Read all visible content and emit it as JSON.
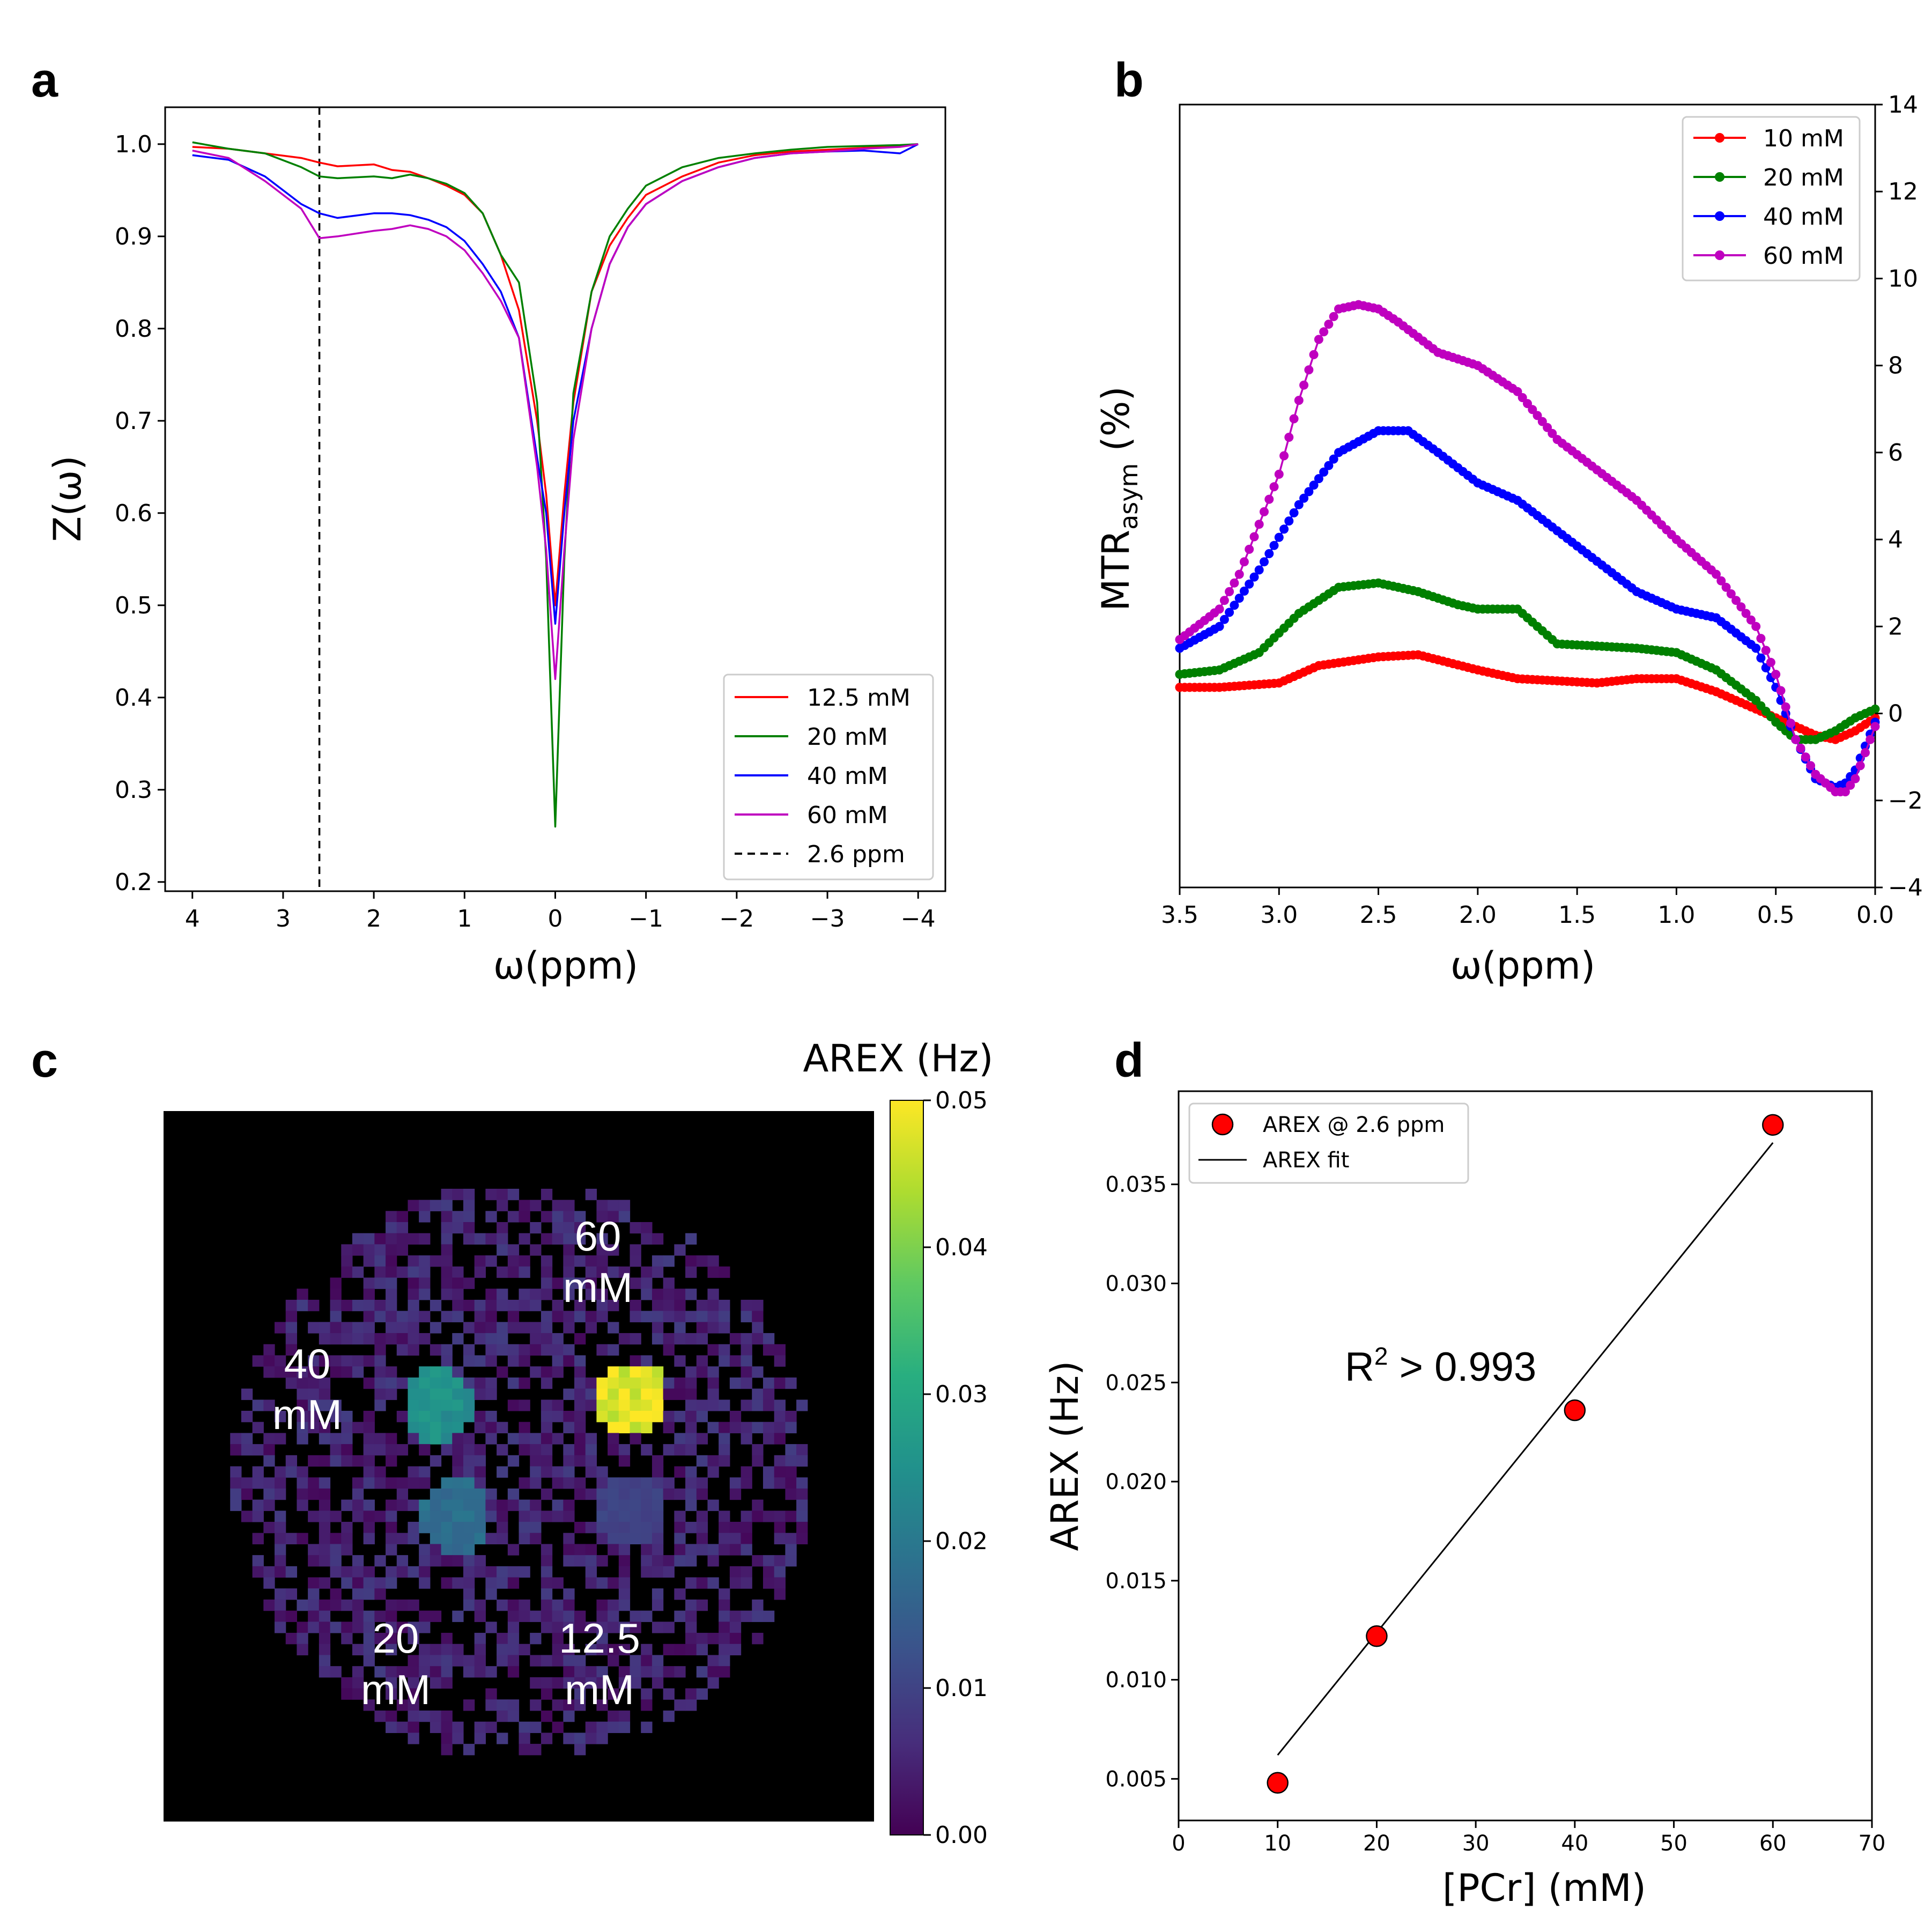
{
  "panels": {
    "a": "a",
    "b": "b",
    "c": "c",
    "d": "d"
  },
  "chart_data": [
    {
      "id": "a",
      "type": "line",
      "title": "",
      "xlabel": "ω(ppm)",
      "ylabel": "Z(ω)",
      "xlim": [
        4.3,
        -4.3
      ],
      "ylim": [
        0.19,
        1.04
      ],
      "xticks": [
        4,
        3,
        2,
        1,
        0,
        -1,
        -2,
        -3,
        -4
      ],
      "xtick_labels": [
        "4",
        "3",
        "2",
        "1",
        "0",
        "−1",
        "−2",
        "−3",
        "−4"
      ],
      "yticks": [
        0.2,
        0.3,
        0.4,
        0.5,
        0.6,
        0.7,
        0.8,
        0.9,
        1.0
      ],
      "ytick_labels": [
        "0.2",
        "0.3",
        "0.4",
        "0.5",
        "0.6",
        "0.7",
        "0.8",
        "0.9",
        "1.0"
      ],
      "legend_position": "lower-right",
      "vline": {
        "x": 2.6,
        "label": "2.6 ppm",
        "color": "#000000"
      },
      "series": [
        {
          "name": "12.5 mM",
          "color": "#ff0000",
          "x": [
            4,
            3.6,
            3.2,
            2.8,
            2.6,
            2.4,
            2.0,
            1.8,
            1.6,
            1.4,
            1.2,
            1.0,
            0.8,
            0.6,
            0.4,
            0.2,
            0.1,
            0,
            -0.1,
            -0.2,
            -0.4,
            -0.6,
            -0.8,
            -1.0,
            -1.4,
            -1.8,
            -2.2,
            -2.6,
            -3.0,
            -3.4,
            -3.8,
            -4.0
          ],
          "values": [
            0.997,
            0.995,
            0.99,
            0.985,
            0.98,
            0.976,
            0.978,
            0.972,
            0.97,
            0.963,
            0.955,
            0.945,
            0.925,
            0.88,
            0.82,
            0.7,
            0.62,
            0.5,
            0.62,
            0.72,
            0.84,
            0.89,
            0.92,
            0.945,
            0.965,
            0.98,
            0.988,
            0.992,
            0.994,
            0.996,
            0.998,
            1.0
          ]
        },
        {
          "name": "20 mM",
          "color": "#008000",
          "x": [
            4,
            3.6,
            3.2,
            2.8,
            2.6,
            2.4,
            2.0,
            1.8,
            1.6,
            1.4,
            1.2,
            1.0,
            0.8,
            0.6,
            0.4,
            0.2,
            0.1,
            0,
            -0.1,
            -0.2,
            -0.4,
            -0.6,
            -0.8,
            -1.0,
            -1.4,
            -1.8,
            -2.2,
            -2.6,
            -3.0,
            -3.4,
            -3.8,
            -4.0
          ],
          "values": [
            1.002,
            0.995,
            0.99,
            0.975,
            0.965,
            0.963,
            0.965,
            0.963,
            0.967,
            0.963,
            0.957,
            0.947,
            0.925,
            0.88,
            0.85,
            0.72,
            0.55,
            0.26,
            0.55,
            0.73,
            0.84,
            0.9,
            0.93,
            0.955,
            0.975,
            0.985,
            0.99,
            0.994,
            0.997,
            0.998,
            0.999,
            1.0
          ]
        },
        {
          "name": "40 mM",
          "color": "#0000ff",
          "x": [
            4,
            3.6,
            3.2,
            2.8,
            2.6,
            2.4,
            2.0,
            1.8,
            1.6,
            1.4,
            1.2,
            1.0,
            0.8,
            0.6,
            0.4,
            0.2,
            0.1,
            0,
            -0.1,
            -0.2,
            -0.4,
            -0.6,
            -0.8,
            -1.0,
            -1.4,
            -1.8,
            -2.2,
            -2.6,
            -3.0,
            -3.4,
            -3.8,
            -4.0
          ],
          "values": [
            0.988,
            0.983,
            0.965,
            0.935,
            0.925,
            0.92,
            0.925,
            0.925,
            0.923,
            0.918,
            0.91,
            0.895,
            0.87,
            0.84,
            0.79,
            0.66,
            0.6,
            0.48,
            0.6,
            0.7,
            0.8,
            0.87,
            0.91,
            0.935,
            0.96,
            0.975,
            0.985,
            0.99,
            0.992,
            0.993,
            0.99,
            1.0
          ]
        },
        {
          "name": "60 mM",
          "color": "#bf00bf",
          "x": [
            4,
            3.6,
            3.2,
            2.8,
            2.6,
            2.4,
            2.0,
            1.8,
            1.6,
            1.4,
            1.2,
            1.0,
            0.8,
            0.6,
            0.4,
            0.2,
            0.1,
            0,
            -0.1,
            -0.2,
            -0.4,
            -0.6,
            -0.8,
            -1.0,
            -1.4,
            -1.8,
            -2.2,
            -2.6,
            -3.0,
            -3.4,
            -3.8,
            -4.0
          ],
          "values": [
            0.993,
            0.985,
            0.96,
            0.93,
            0.898,
            0.9,
            0.906,
            0.908,
            0.912,
            0.908,
            0.9,
            0.885,
            0.86,
            0.83,
            0.79,
            0.65,
            0.56,
            0.42,
            0.56,
            0.68,
            0.8,
            0.87,
            0.91,
            0.935,
            0.96,
            0.975,
            0.985,
            0.99,
            0.992,
            0.995,
            0.997,
            1.0
          ]
        }
      ]
    },
    {
      "id": "b",
      "type": "line",
      "title": "",
      "xlabel": "ω(ppm)",
      "ylabel": "MTR",
      "ylabel_sub": "asym",
      "ylabel_suffix": " (%)",
      "xlim": [
        3.5,
        0.0
      ],
      "ylim": [
        -4,
        14
      ],
      "xticks": [
        3.5,
        3.0,
        2.5,
        2.0,
        1.5,
        1.0,
        0.5,
        0.0
      ],
      "xtick_labels": [
        "3.5",
        "3.0",
        "2.5",
        "2.0",
        "1.5",
        "1.0",
        "0.5",
        "0.0"
      ],
      "yticks": [
        -4,
        -2,
        0,
        2,
        4,
        6,
        8,
        10,
        12,
        14
      ],
      "ytick_labels": [
        "−4",
        "−2",
        "0",
        "2",
        "4",
        "6",
        "8",
        "10",
        "12",
        "14"
      ],
      "yaxis_side": "right",
      "legend_position": "top-right",
      "series": [
        {
          "name": "10 mM",
          "color": "#ff0000",
          "x": [
            3.5,
            3.3,
            3.0,
            2.8,
            2.5,
            2.3,
            2.0,
            1.8,
            1.6,
            1.4,
            1.2,
            1.0,
            0.8,
            0.6,
            0.45,
            0.3,
            0.2,
            0.1,
            0.0
          ],
          "values": [
            0.6,
            0.6,
            0.7,
            1.1,
            1.3,
            1.35,
            1.0,
            0.8,
            0.75,
            0.7,
            0.8,
            0.8,
            0.5,
            0.1,
            -0.2,
            -0.5,
            -0.6,
            -0.4,
            -0.1
          ]
        },
        {
          "name": "20 mM",
          "color": "#008000",
          "x": [
            3.5,
            3.3,
            3.1,
            2.9,
            2.7,
            2.5,
            2.3,
            2.1,
            2.0,
            1.8,
            1.6,
            1.4,
            1.2,
            1.0,
            0.8,
            0.6,
            0.5,
            0.4,
            0.3,
            0.2,
            0.1,
            0.0
          ],
          "values": [
            0.9,
            1.0,
            1.4,
            2.3,
            2.9,
            3.0,
            2.8,
            2.5,
            2.4,
            2.4,
            1.6,
            1.55,
            1.5,
            1.4,
            1.0,
            0.3,
            -0.2,
            -0.6,
            -0.6,
            -0.4,
            -0.1,
            0.1
          ]
        },
        {
          "name": "40 mM",
          "color": "#0000ff",
          "x": [
            3.5,
            3.3,
            3.1,
            2.9,
            2.7,
            2.5,
            2.35,
            2.2,
            2.0,
            1.8,
            1.6,
            1.4,
            1.2,
            1.0,
            0.8,
            0.6,
            0.5,
            0.4,
            0.3,
            0.2,
            0.15,
            0.1,
            0.0
          ],
          "values": [
            1.5,
            2.0,
            3.3,
            4.8,
            6.0,
            6.5,
            6.5,
            6.0,
            5.3,
            4.9,
            4.2,
            3.5,
            2.8,
            2.4,
            2.2,
            1.5,
            0.6,
            -0.6,
            -1.5,
            -1.7,
            -1.6,
            -1.3,
            -0.2
          ]
        },
        {
          "name": "60 mM",
          "color": "#bf00bf",
          "x": [
            3.5,
            3.3,
            3.2,
            3.0,
            2.9,
            2.8,
            2.7,
            2.6,
            2.5,
            2.4,
            2.2,
            2.0,
            1.8,
            1.6,
            1.4,
            1.2,
            1.0,
            0.8,
            0.6,
            0.5,
            0.4,
            0.3,
            0.2,
            0.15,
            0.1,
            0.0
          ],
          "values": [
            1.7,
            2.4,
            3.2,
            5.5,
            7.2,
            8.6,
            9.3,
            9.4,
            9.3,
            9.0,
            8.3,
            8.0,
            7.4,
            6.3,
            5.6,
            4.9,
            4.0,
            3.2,
            2.0,
            0.9,
            -0.6,
            -1.4,
            -1.8,
            -1.8,
            -1.5,
            -0.3
          ]
        }
      ]
    },
    {
      "id": "c",
      "type": "heatmap",
      "title": "AREX (Hz)",
      "colorbar": {
        "min": 0.0,
        "max": 0.05,
        "ticks": [
          0.0,
          0.01,
          0.02,
          0.03,
          0.04,
          0.05
        ],
        "tick_labels": [
          "0.00",
          "0.01",
          "0.02",
          "0.03",
          "0.04",
          "0.05"
        ]
      },
      "regions": [
        {
          "label_line1": "60",
          "label_line2": "mM",
          "value": 0.048
        },
        {
          "label_line1": "40",
          "label_line2": "mM",
          "value": 0.025
        },
        {
          "label_line1": "20",
          "label_line2": "mM",
          "value": 0.018
        },
        {
          "label_line1": "12.5",
          "label_line2": "mM",
          "value": 0.01
        }
      ]
    },
    {
      "id": "d",
      "type": "scatter",
      "xlabel": "[PCr] (mM)",
      "ylabel": "AREX (Hz)",
      "xlim": [
        0,
        70
      ],
      "ylim": [
        0.0029,
        0.0397
      ],
      "xticks": [
        0,
        10,
        20,
        30,
        40,
        50,
        60,
        70
      ],
      "xtick_labels": [
        "0",
        "10",
        "20",
        "30",
        "40",
        "50",
        "60",
        "70"
      ],
      "yticks": [
        0.005,
        0.01,
        0.015,
        0.02,
        0.025,
        0.03,
        0.035
      ],
      "ytick_labels": [
        "0.005",
        "0.010",
        "0.015",
        "0.020",
        "0.025",
        "0.030",
        "0.035"
      ],
      "legend_position": "top-left",
      "points": {
        "name": "AREX @ 2.6 ppm",
        "color": "#ff0000",
        "x": [
          10,
          20,
          40,
          60
        ],
        "values": [
          0.0048,
          0.0122,
          0.0236,
          0.038
        ]
      },
      "fit": {
        "name": "AREX fit",
        "x": [
          10,
          60
        ],
        "values": [
          0.0062,
          0.0371
        ]
      },
      "annotation": {
        "main": "R",
        "sup": "2",
        "rest": " > 0.993"
      }
    }
  ]
}
